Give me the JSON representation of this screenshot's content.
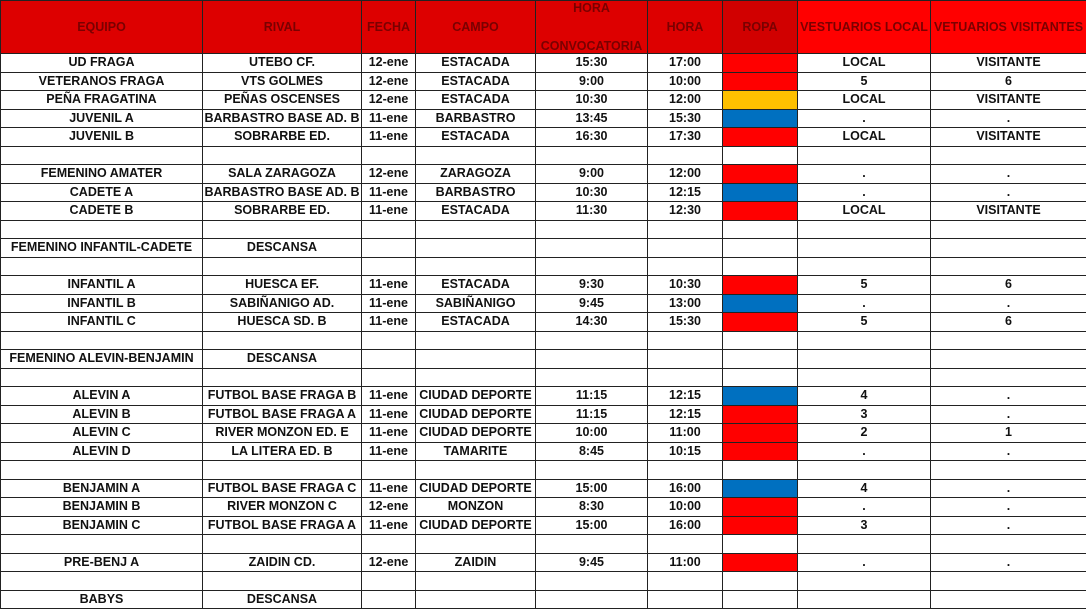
{
  "headers": [
    "EQUIPO",
    "RIVAL",
    "FECHA",
    "CAMPO",
    "HORA CONVOCATORIA",
    "HORA",
    "ROPA",
    "VESTUARIOS LOCAL",
    "VETUARIOS VISITANTES"
  ],
  "header_convocatoria": {
    "top": "HORA",
    "bottom": "CONVOCATORIA"
  },
  "colors": {
    "red": "#ff0000",
    "yellow": "#ffc000",
    "blue": "#0070c0",
    "header": "#dd0000"
  },
  "rows": [
    {
      "equipo": "UD FRAGA",
      "rival": "UTEBO CF.",
      "fecha": "12-ene",
      "campo": "ESTACADA",
      "conv": "15:30",
      "hora": "17:00",
      "ropa": "red",
      "local": "LOCAL",
      "visit": "VISITANTE"
    },
    {
      "equipo": "VETERANOS FRAGA",
      "rival": "VTS GOLMES",
      "fecha": "12-ene",
      "campo": "ESTACADA",
      "conv": "9:00",
      "hora": "10:00",
      "ropa": "red",
      "local": "5",
      "visit": "6"
    },
    {
      "equipo": "PEÑA FRAGATINA",
      "rival": "PEÑAS OSCENSES",
      "fecha": "12-ene",
      "campo": "ESTACADA",
      "conv": "10:30",
      "hora": "12:00",
      "ropa": "yellow",
      "local": "LOCAL",
      "visit": "VISITANTE"
    },
    {
      "equipo": "JUVENIL A",
      "rival": "BARBASTRO BASE AD. B",
      "fecha": "11-ene",
      "campo": "BARBASTRO",
      "conv": "13:45",
      "hora": "15:30",
      "ropa": "blue",
      "local": ".",
      "visit": "."
    },
    {
      "equipo": "JUVENIL B",
      "rival": "SOBRARBE ED.",
      "fecha": "11-ene",
      "campo": "ESTACADA",
      "conv": "16:30",
      "hora": "17:30",
      "ropa": "red",
      "local": "LOCAL",
      "visit": "VISITANTE"
    },
    {},
    {
      "equipo": "FEMENINO AMATER",
      "rival": "SALA ZARAGOZA",
      "fecha": "12-ene",
      "campo": "ZARAGOZA",
      "conv": "9:00",
      "hora": "12:00",
      "ropa": "red",
      "local": ".",
      "visit": "."
    },
    {
      "equipo": "CADETE A",
      "rival": "BARBASTRO BASE AD. B",
      "fecha": "11-ene",
      "campo": "BARBASTRO",
      "conv": "10:30",
      "hora": "12:15",
      "ropa": "blue",
      "local": ".",
      "visit": "."
    },
    {
      "equipo": "CADETE B",
      "rival": "SOBRARBE ED.",
      "fecha": "11-ene",
      "campo": "ESTACADA",
      "conv": "11:30",
      "hora": "12:30",
      "ropa": "red",
      "local": "LOCAL",
      "visit": "VISITANTE"
    },
    {},
    {
      "equipo": "FEMENINO INFANTIL-CADETE",
      "rival": "DESCANSA"
    },
    {},
    {
      "equipo": "INFANTIL A",
      "rival": "HUESCA EF.",
      "fecha": "11-ene",
      "campo": "ESTACADA",
      "conv": "9:30",
      "hora": "10:30",
      "ropa": "red",
      "local": "5",
      "visit": "6"
    },
    {
      "equipo": "INFANTIL B",
      "rival": "SABIÑANIGO AD.",
      "fecha": "11-ene",
      "campo": "SABIÑANIGO",
      "conv": "9:45",
      "hora": "13:00",
      "ropa": "blue",
      "local": ".",
      "visit": "."
    },
    {
      "equipo": "INFANTIL C",
      "rival": "HUESCA SD. B",
      "fecha": "11-ene",
      "campo": "ESTACADA",
      "conv": "14:30",
      "hora": "15:30",
      "ropa": "red",
      "local": "5",
      "visit": "6"
    },
    {},
    {
      "equipo": "FEMENINO ALEVIN-BENJAMIN",
      "rival": "DESCANSA"
    },
    {},
    {
      "equipo": "ALEVIN A",
      "rival": "FUTBOL BASE FRAGA B",
      "fecha": "11-ene",
      "campo": "CIUDAD DEPORTE",
      "conv": "11:15",
      "hora": "12:15",
      "ropa": "blue",
      "local": "4",
      "visit": "."
    },
    {
      "equipo": "ALEVIN B",
      "rival": "FUTBOL BASE FRAGA A",
      "fecha": "11-ene",
      "campo": "CIUDAD DEPORTE",
      "conv": "11:15",
      "hora": "12:15",
      "ropa": "red",
      "local": "3",
      "visit": "."
    },
    {
      "equipo": "ALEVIN C",
      "rival": "RIVER MONZON ED. E",
      "fecha": "11-ene",
      "campo": "CIUDAD DEPORTE",
      "conv": "10:00",
      "hora": "11:00",
      "ropa": "red",
      "local": "2",
      "visit": "1"
    },
    {
      "equipo": "ALEVIN D",
      "rival": "LA LITERA ED. B",
      "fecha": "11-ene",
      "campo": "TAMARITE",
      "conv": "8:45",
      "hora": "10:15",
      "ropa": "red",
      "local": ".",
      "visit": "."
    },
    {},
    {
      "equipo": "BENJAMIN A",
      "rival": "FUTBOL BASE FRAGA C",
      "fecha": "11-ene",
      "campo": "CIUDAD DEPORTE",
      "conv": "15:00",
      "hora": "16:00",
      "ropa": "blue",
      "local": "4",
      "visit": "."
    },
    {
      "equipo": "BENJAMIN B",
      "rival": "RIVER MONZON C",
      "fecha": "12-ene",
      "campo": "MONZON",
      "conv": "8:30",
      "hora": "10:00",
      "ropa": "red",
      "local": ".",
      "visit": "."
    },
    {
      "equipo": "BENJAMIN C",
      "rival": "FUTBOL BASE FRAGA A",
      "fecha": "11-ene",
      "campo": "CIUDAD DEPORTE",
      "conv": "15:00",
      "hora": "16:00",
      "ropa": "red",
      "local": "3",
      "visit": "."
    },
    {},
    {
      "equipo": "PRE-BENJ A",
      "rival": "ZAIDIN CD.",
      "fecha": "12-ene",
      "campo": "ZAIDIN",
      "conv": "9:45",
      "hora": "11:00",
      "ropa": "red",
      "local": ".",
      "visit": "."
    },
    {},
    {
      "equipo": "BABYS",
      "rival": "DESCANSA"
    }
  ]
}
